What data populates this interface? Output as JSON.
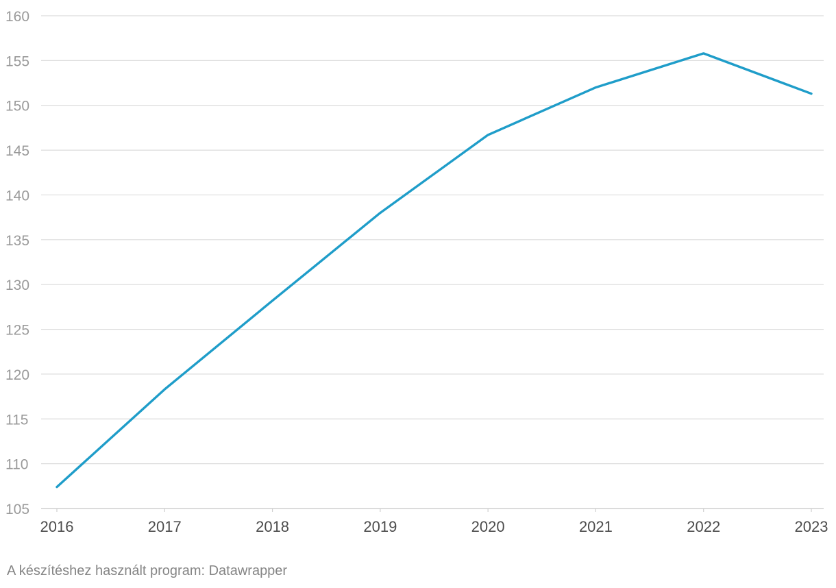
{
  "chart_data": {
    "type": "line",
    "title": "",
    "xlabel": "",
    "ylabel": "",
    "x": [
      "2016",
      "2017",
      "2018",
      "2019",
      "2020",
      "2021",
      "2022",
      "2023"
    ],
    "series": [
      {
        "values": [
          107.4,
          118.3,
          128.2,
          138.0,
          146.7,
          152.0,
          155.8,
          151.3
        ],
        "color": "#1f9dc9"
      }
    ],
    "ylim": [
      105,
      160
    ],
    "yticks": [
      105,
      110,
      115,
      120,
      125,
      130,
      135,
      140,
      145,
      150,
      155,
      160
    ],
    "grid": true,
    "legend": "none"
  },
  "footer": {
    "credit": "A készítéshez használt program: Datawrapper"
  }
}
